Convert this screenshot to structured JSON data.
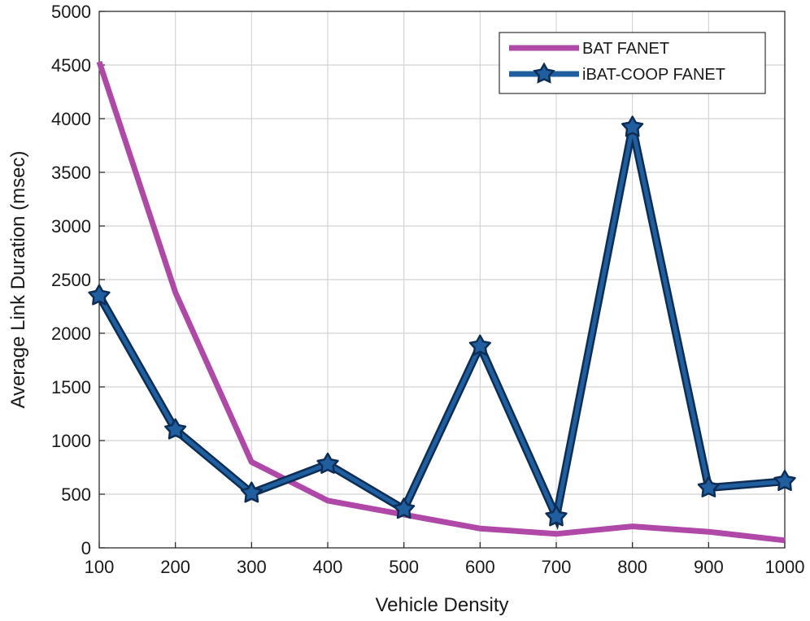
{
  "chart_data": {
    "type": "line",
    "xlabel": "Vehicle Density",
    "ylabel": "Average Link Duration (msec)",
    "xlim": [
      100,
      1000
    ],
    "ylim": [
      0,
      5000
    ],
    "x_ticks": [
      100,
      200,
      300,
      400,
      500,
      600,
      700,
      800,
      900,
      1000
    ],
    "y_ticks": [
      0,
      500,
      1000,
      1500,
      2000,
      2500,
      3000,
      3500,
      4000,
      4500,
      5000
    ],
    "grid": true,
    "legend_position": "top-right",
    "series": [
      {
        "name": "BAT FANET",
        "color": "#b048a8",
        "marker": "none",
        "x": [
          100,
          200,
          300,
          400,
          500,
          600,
          700,
          800,
          900,
          1000
        ],
        "y": [
          4530,
          2380,
          800,
          440,
          310,
          180,
          130,
          200,
          150,
          70
        ]
      },
      {
        "name": "iBAT-COOP FANET",
        "color": "#1f5fa0",
        "marker": "star",
        "x": [
          100,
          200,
          300,
          400,
          500,
          600,
          700,
          800,
          900,
          1000
        ],
        "y": [
          2350,
          1100,
          510,
          780,
          360,
          1880,
          290,
          3920,
          560,
          620
        ]
      }
    ]
  }
}
